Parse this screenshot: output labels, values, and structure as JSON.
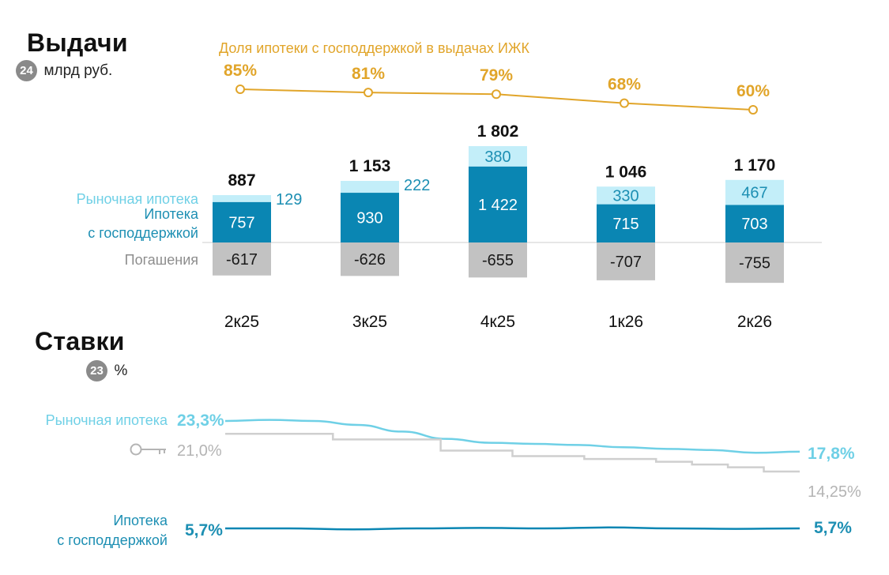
{
  "colors": {
    "market": "#6fd0e6",
    "market_bar": "#c3eef9",
    "gov": "#0a86b3",
    "gov_text": "#1d8fb3",
    "repay": "#c2c2c2",
    "repay_text": "#8d8d8d",
    "key_rate": "#cfcfcf",
    "key_text": "#b4b4b4",
    "share": "#e1a52a",
    "dark": "#111111"
  },
  "section1": {
    "title": "Выдачи",
    "badge": "24",
    "unit": "млрд руб."
  },
  "section2": {
    "title": "Ставки",
    "badge": "23",
    "unit": "%"
  },
  "chart_data": [
    {
      "type": "bar",
      "title": "Выдачи",
      "unit": "млрд руб.",
      "categories": [
        "2к25",
        "3к25",
        "4к25",
        "1к26",
        "2к26"
      ],
      "totals": [
        "887",
        "1 153",
        "1 802",
        "1 046",
        "1 170"
      ],
      "series": [
        {
          "name": "Ипотека с господдержкой",
          "values": [
            757,
            930,
            1422,
            715,
            703
          ],
          "labels": [
            "757",
            "930",
            "1 422",
            "715",
            "703"
          ]
        },
        {
          "name": "Рыночная ипотека",
          "values": [
            129,
            222,
            380,
            330,
            467
          ],
          "labels": [
            "129",
            "222",
            "380",
            "330",
            "467"
          ]
        },
        {
          "name": "Погашения",
          "values": [
            -617,
            -626,
            -655,
            -707,
            -755
          ],
          "labels": [
            "-617",
            "-626",
            "-655",
            "-707",
            "-755"
          ]
        }
      ],
      "legend": {
        "market": "Рыночная ипотека",
        "gov_line1": "Ипотека",
        "gov_line2": "с господдержкой",
        "repay": "Погашения"
      },
      "share_line": {
        "name": "Доля ипотеки с господдержкой в выдачах ИЖК",
        "values": [
          85,
          81,
          79,
          68,
          60
        ],
        "labels": [
          "85%",
          "81%",
          "79%",
          "68%",
          "60%"
        ]
      }
    },
    {
      "type": "line",
      "title": "Ставки",
      "unit": "%",
      "series": [
        {
          "name": "Рыночная ипотека",
          "start_label": "23,3%",
          "end_label": "17,8%",
          "values": [
            23.3,
            23.5,
            23.3,
            22.6,
            21.4,
            20.1,
            19.4,
            19.2,
            19.0,
            18.6,
            18.3,
            18.1,
            17.6,
            17.8
          ]
        },
        {
          "name": "Ключевая ставка",
          "start_label": "21,0%",
          "end_label": "14,25%",
          "values": [
            21.0,
            21.0,
            21.0,
            20.0,
            20.0,
            20.0,
            18.0,
            18.0,
            17.0,
            17.0,
            16.5,
            16.5,
            16.0,
            15.5,
            15.0,
            14.25
          ]
        },
        {
          "name": "Ипотека с господдержкой",
          "name_line1": "Ипотека",
          "name_line2": "с господдержкой",
          "start_label": "5,7%",
          "end_label": "5,7%",
          "values": [
            5.7,
            5.7,
            5.68,
            5.7,
            5.71,
            5.7,
            5.72,
            5.7,
            5.69,
            5.7
          ]
        }
      ]
    }
  ]
}
